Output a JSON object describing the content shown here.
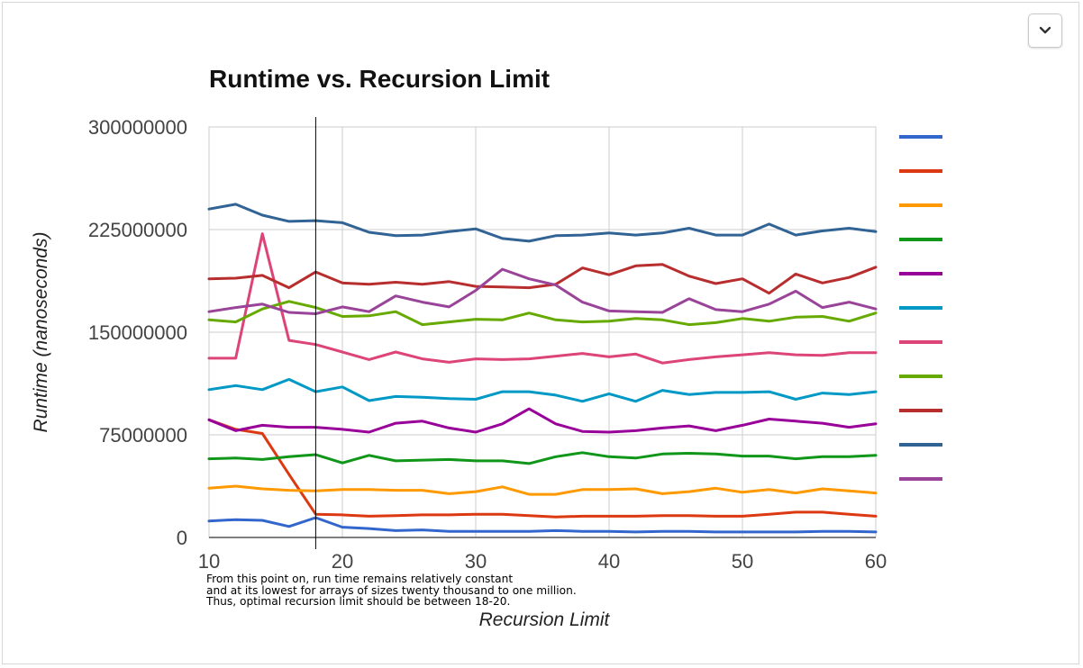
{
  "chart_data": {
    "type": "line",
    "title": "Runtime vs. Recursion Limit",
    "xlabel": "Recursion Limit",
    "ylabel": "Runtime (nanoseconds)",
    "xlim": [
      10,
      60
    ],
    "ylim": [
      0,
      300000000
    ],
    "x_ticks": [
      "10",
      "20",
      "30",
      "40",
      "50",
      "60"
    ],
    "y_ticks": [
      "0",
      "75000000",
      "150000000",
      "225000000",
      "300000000"
    ],
    "grid": true,
    "legend_position": "right",
    "marker_line_x": 18,
    "x": [
      10,
      12,
      14,
      16,
      18,
      20,
      22,
      24,
      26,
      28,
      30,
      32,
      34,
      36,
      38,
      40,
      42,
      44,
      46,
      48,
      50,
      52,
      54,
      56,
      58,
      60
    ],
    "series": [
      {
        "color": "#3366cc",
        "values": [
          12000000,
          13000000,
          12500000,
          8000000,
          14500000,
          7500000,
          6500000,
          5000000,
          5500000,
          4500000,
          4500000,
          4500000,
          4500000,
          5000000,
          4500000,
          4500000,
          4000000,
          4500000,
          4500000,
          4000000,
          4000000,
          4000000,
          4000000,
          4500000,
          4500000,
          4000000
        ]
      },
      {
        "color": "#dc3912",
        "values": [
          86000000,
          79000000,
          76000000,
          46000000,
          17000000,
          16500000,
          15500000,
          16000000,
          16500000,
          16500000,
          17000000,
          17000000,
          16000000,
          15000000,
          15500000,
          15500000,
          15500000,
          16000000,
          16000000,
          15500000,
          15500000,
          17000000,
          18500000,
          18500000,
          17000000,
          15500000
        ]
      },
      {
        "color": "#ff9900",
        "values": [
          36000000,
          37500000,
          35500000,
          34500000,
          34000000,
          35000000,
          35000000,
          34500000,
          34500000,
          32000000,
          33500000,
          37000000,
          31500000,
          31500000,
          35000000,
          35000000,
          35500000,
          32000000,
          33500000,
          36000000,
          33000000,
          35000000,
          32500000,
          35500000,
          34000000,
          32500000
        ]
      },
      {
        "color": "#109618",
        "values": [
          57500000,
          58000000,
          57000000,
          59000000,
          60500000,
          54500000,
          60000000,
          56000000,
          56500000,
          57000000,
          56000000,
          56000000,
          54000000,
          59000000,
          62000000,
          59000000,
          58000000,
          61000000,
          61500000,
          61000000,
          59500000,
          59500000,
          57500000,
          59000000,
          59000000,
          60000000
        ]
      },
      {
        "color": "#990099",
        "values": [
          86000000,
          78000000,
          82000000,
          80500000,
          80500000,
          79000000,
          77000000,
          83500000,
          85000000,
          80000000,
          77000000,
          83000000,
          94000000,
          83000000,
          77500000,
          77000000,
          78000000,
          80000000,
          81500000,
          78000000,
          82000000,
          86500000,
          85000000,
          83500000,
          80500000,
          83000000
        ]
      },
      {
        "color": "#0099c6",
        "values": [
          108000000,
          111000000,
          108000000,
          115500000,
          106500000,
          110000000,
          100000000,
          103000000,
          102500000,
          101500000,
          101000000,
          106500000,
          106500000,
          104000000,
          99500000,
          105000000,
          99500000,
          107500000,
          104500000,
          106000000,
          106000000,
          106500000,
          101000000,
          105500000,
          104500000,
          106500000
        ]
      },
      {
        "color": "#dd4477",
        "values": [
          131000000,
          131000000,
          222000000,
          144000000,
          141000000,
          135500000,
          130000000,
          135500000,
          130500000,
          128000000,
          130500000,
          130000000,
          130500000,
          132500000,
          134500000,
          132000000,
          134000000,
          127500000,
          130000000,
          132000000,
          133500000,
          135000000,
          133500000,
          133000000,
          135000000,
          135000000
        ]
      },
      {
        "color": "#66aa00",
        "values": [
          159000000,
          157500000,
          167000000,
          172500000,
          168000000,
          161500000,
          162000000,
          165000000,
          155500000,
          157500000,
          159500000,
          159000000,
          164000000,
          159000000,
          157500000,
          158000000,
          160000000,
          159000000,
          155500000,
          157000000,
          160000000,
          158000000,
          161000000,
          161500000,
          158000000,
          164000000
        ]
      },
      {
        "color": "#b82e2e",
        "values": [
          189000000,
          189500000,
          191500000,
          182500000,
          194000000,
          186000000,
          185000000,
          186500000,
          185000000,
          187000000,
          183500000,
          183000000,
          182500000,
          185000000,
          197000000,
          192000000,
          198500000,
          199500000,
          191000000,
          185500000,
          189000000,
          178500000,
          192500000,
          186000000,
          190000000,
          197500000
        ]
      },
      {
        "color": "#316395",
        "values": [
          240000000,
          243500000,
          235500000,
          231000000,
          231500000,
          230000000,
          223000000,
          220500000,
          221000000,
          223500000,
          225500000,
          218500000,
          216500000,
          220500000,
          221000000,
          222500000,
          221000000,
          222500000,
          226000000,
          221000000,
          221000000,
          229000000,
          221000000,
          224000000,
          226000000,
          223500000
        ]
      },
      {
        "color": "#994499",
        "values": [
          165000000,
          168000000,
          170500000,
          164500000,
          163500000,
          168500000,
          165000000,
          176500000,
          172000000,
          168500000,
          180500000,
          196000000,
          189000000,
          184500000,
          172000000,
          165500000,
          165000000,
          164500000,
          174500000,
          166500000,
          165000000,
          170500000,
          180000000,
          168000000,
          172000000,
          167000000
        ]
      }
    ],
    "annotation": [
      "From this point on, run time remains relatively constant",
      "and at its lowest for arrays of sizes twenty thousand to one million.",
      "Thus, optimal recursion limit should be between 18-20."
    ]
  }
}
